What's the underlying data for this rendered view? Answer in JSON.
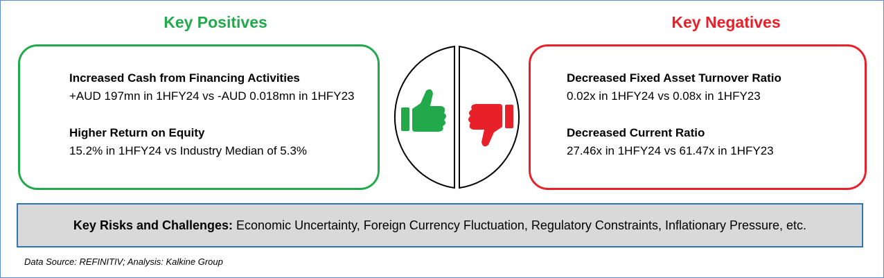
{
  "positives": {
    "title": "Key Positives",
    "items": [
      {
        "heading": "Increased Cash from Financing Activities",
        "detail": "+AUD 197mn in 1HFY24 vs -AUD 0.018mn in 1HFY23"
      },
      {
        "heading": "Higher Return on Equity",
        "detail": "15.2% in 1HFY24 vs Industry Median of 5.3%"
      }
    ]
  },
  "negatives": {
    "title": "Key Negatives",
    "items": [
      {
        "heading": "Decreased Fixed Asset Turnover Ratio",
        "detail": "0.02x in 1HFY24 vs 0.08x in 1HFY23"
      },
      {
        "heading": "Decreased Current Ratio",
        "detail": "27.46x in 1HFY24 vs 61.47x in 1HFY23"
      }
    ]
  },
  "risks": {
    "label": "Key Risks and Challenges:",
    "text": "Economic Uncertainty, Foreign Currency Fluctuation, Regulatory Constraints, Inflationary Pressure, etc."
  },
  "footer": "Data Source: REFINITIV; Analysis: Kalkine Group"
}
